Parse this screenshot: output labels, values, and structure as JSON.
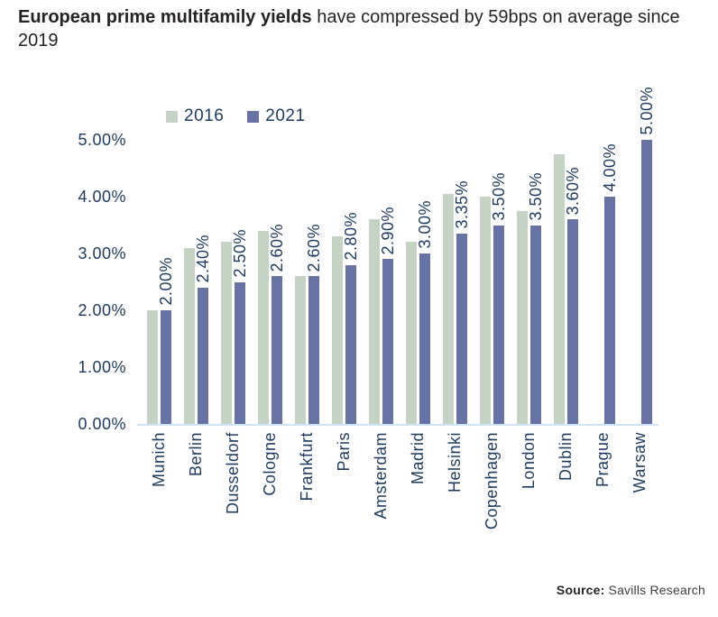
{
  "title": {
    "bold": "European prime multifamily yields",
    "regular": " have compressed by 59bps on average since 2019"
  },
  "legend": [
    {
      "label": "2016",
      "color": "#c5d3c5"
    },
    {
      "label": "2021",
      "color": "#6673a4"
    }
  ],
  "source": {
    "label": "Source:",
    "text": " Savills Research"
  },
  "colors": {
    "series_2016": "#c5d3c5",
    "series_2021": "#6673a4",
    "axis_text": "#1c3a5e",
    "axis_line": "#cfe4f5",
    "title_text": "#262324"
  },
  "chart_data": {
    "type": "bar",
    "title": "European prime multifamily yields have compressed by 59bps on average since 2019",
    "categories": [
      "Munich",
      "Berlin",
      "Dusseldorf",
      "Cologne",
      "Frankfurt",
      "Paris",
      "Amsterdam",
      "Madrid",
      "Helsinki",
      "Copenhagen",
      "London",
      "Dublin",
      "Prague",
      "Warsaw"
    ],
    "series": [
      {
        "name": "2016",
        "color": "#c5d3c5",
        "values": [
          2.0,
          3.1,
          3.2,
          3.4,
          2.6,
          3.3,
          3.6,
          3.2,
          4.05,
          4.0,
          3.75,
          4.75,
          null,
          null
        ]
      },
      {
        "name": "2021",
        "color": "#6673a4",
        "values": [
          2.0,
          2.4,
          2.5,
          2.6,
          2.6,
          2.8,
          2.9,
          3.0,
          3.35,
          3.5,
          3.5,
          3.6,
          4.0,
          5.0
        ]
      }
    ],
    "bar_labels": [
      "2.00%",
      "2.40%",
      "2.50%",
      "2.60%",
      "2.60%",
      "2.80%",
      "2.90%",
      "3.00%",
      "3.35%",
      "3.50%",
      "3.50%",
      "3.60%",
      "4.00%",
      "5.00%"
    ],
    "xlabel": "",
    "ylabel": "",
    "ylim": [
      0,
      5
    ],
    "yticks": [
      {
        "label": "5.00%",
        "value": 5
      },
      {
        "label": "4.00%",
        "value": 4
      },
      {
        "label": "3.00%",
        "value": 3
      },
      {
        "label": "2.00%",
        "value": 2
      },
      {
        "label": "1.00%",
        "value": 1
      },
      {
        "label": "0.00%",
        "value": 0
      }
    ],
    "grid": false,
    "legend_position": "top",
    "bar_label_style": "rotated-90-above-2021-bar",
    "category_label_style": "rotated-90-below-axis"
  }
}
